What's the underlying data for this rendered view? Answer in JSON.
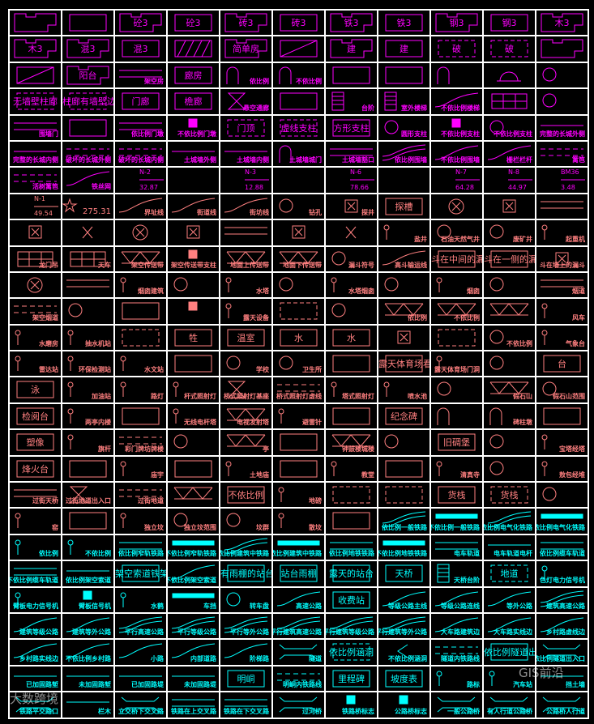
{
  "palette": {
    "magenta": "#ff00ff",
    "pink": "#ff8080",
    "cyan": "#00ffff",
    "grid": "#ffffff"
  },
  "watermarks": {
    "left": "大数跨境",
    "right": "GIS前沿"
  },
  "rows": [
    {
      "color": "magenta",
      "cells": [
        [
          "",
          "bldg"
        ],
        [
          "",
          "rect"
        ],
        [
          "砼3",
          "bldg"
        ],
        [
          "砼3",
          "rect"
        ],
        [
          "砖3",
          "bldg"
        ],
        [
          "砖3",
          "rect"
        ],
        [
          "铁3",
          "bldg"
        ],
        [
          "铁3",
          "rect"
        ],
        [
          "钢3",
          "bldg"
        ],
        [
          "钢3",
          "rect"
        ],
        [
          "木3",
          "bldg"
        ]
      ]
    },
    {
      "color": "magenta",
      "cells": [
        [
          "木3",
          "bldg"
        ],
        [
          "混3",
          "bldg"
        ],
        [
          "混3",
          "rect"
        ],
        [
          "",
          "hatch"
        ],
        [
          "简单房",
          "bldg"
        ],
        [
          "",
          "diag"
        ],
        [
          "建",
          "bldg"
        ],
        [
          "建",
          "rect"
        ],
        [
          "破",
          "dash"
        ],
        [
          "破",
          "dash"
        ],
        [
          "",
          "bldg"
        ]
      ]
    },
    {
      "color": "magenta",
      "cells": [
        [
          "",
          "diag"
        ],
        [
          "阳台",
          "bldg"
        ],
        [
          "架空房",
          "line2"
        ],
        [
          "廊房",
          "rect"
        ],
        [
          "依比例",
          "arch"
        ],
        [
          "不依比例",
          "arch"
        ],
        [
          "",
          "rect"
        ],
        [
          "",
          "rect"
        ],
        [
          "",
          "arch"
        ],
        [
          "",
          "dome"
        ],
        [
          "",
          "circ"
        ]
      ]
    },
    {
      "color": "magenta",
      "cells": [
        [
          "无墙壁柱廊",
          "dash"
        ],
        [
          "柱廊有墙壁边",
          "dash"
        ],
        [
          "门廊",
          "rect"
        ],
        [
          "檐廊",
          "rect"
        ],
        [
          "悬空通廊",
          "xbox"
        ],
        [
          "",
          "rect"
        ],
        [
          "台阶",
          "stairs"
        ],
        [
          "室外楼梯",
          "stairs"
        ],
        [
          "不依比例楼梯",
          "curve"
        ],
        [
          "",
          "grid"
        ],
        [
          "",
          "circ"
        ]
      ]
    },
    {
      "color": "magenta",
      "cells": [
        [
          "围墙门",
          "line2"
        ],
        [
          "",
          "rect"
        ],
        [
          "依比例门墩",
          "line2"
        ],
        [
          "不依比例门墩",
          "fill"
        ],
        [
          "门顶",
          "dash"
        ],
        [
          "虚线支柱",
          "dash"
        ],
        [
          "方形支柱",
          "rect"
        ],
        [
          "圆形支柱",
          "circ"
        ],
        [
          "不依比例支柱",
          "fill"
        ],
        [
          "不依比例支柱",
          "circ"
        ],
        [
          "完整的长城外侧",
          "line"
        ]
      ]
    },
    {
      "color": "magenta",
      "cells": [
        [
          "完整的长城内侧",
          "line"
        ],
        [
          "破坏的长城外侧",
          "dline"
        ],
        [
          "破坏的长城内侧",
          "dline"
        ],
        [
          "土城墙外侧",
          "line"
        ],
        [
          "土城墙内侧",
          "line"
        ],
        [
          "土城墙城门",
          "arch"
        ],
        [
          "土城墙豁口",
          "line2"
        ],
        [
          "依比例围墙",
          "curve2"
        ],
        [
          "不依比例围墙",
          "curve"
        ],
        [
          "栅栏栏杆",
          "curve"
        ],
        [
          "篱笆",
          "dline"
        ]
      ]
    },
    {
      "color": "magenta",
      "cells": [
        [
          "活树篱笆",
          "dline"
        ],
        [
          "铁丝网",
          "curve"
        ],
        [
          "N-2",
          "frac",
          "32.87"
        ],
        [
          "",
          "none"
        ],
        [
          "N-3",
          "frac",
          "12.88"
        ],
        [
          "",
          "none"
        ],
        [
          "N-6",
          "frac",
          "78.66"
        ],
        [
          "",
          "none"
        ],
        [
          "N-7",
          "frac",
          "64.28"
        ],
        [
          "N-8",
          "frac",
          "44.97"
        ],
        [
          "BM36",
          "frac",
          "3.48"
        ]
      ]
    },
    {
      "color": "pink",
      "cells": [
        [
          "N-1",
          "frac",
          "49.54"
        ],
        [
          "275.31",
          "star"
        ],
        [
          "界址线",
          "curve"
        ],
        [
          "街道线",
          "curve"
        ],
        [
          "街坊线",
          "curve"
        ],
        [
          "钻孔",
          "circ"
        ],
        [
          "探井",
          "sqx"
        ],
        [
          "探槽",
          "rect"
        ],
        [
          "",
          "circx"
        ],
        [
          "",
          "sqx"
        ],
        [
          "",
          "line2"
        ]
      ]
    },
    {
      "color": "pink",
      "cells": [
        [
          "",
          "sqx"
        ],
        [
          "",
          "x"
        ],
        [
          "",
          "circx"
        ],
        [
          "",
          "sqx"
        ],
        [
          "",
          "line2"
        ],
        [
          "",
          "sqx"
        ],
        [
          "",
          "x"
        ],
        [
          "盐井",
          "pin"
        ],
        [
          "石油天然气井",
          "circ"
        ],
        [
          "废矿井",
          "circ"
        ],
        [
          "起重机",
          "pin"
        ]
      ]
    },
    {
      "color": "pink",
      "cells": [
        [
          "龙门吊",
          "grid"
        ],
        [
          "天车",
          "grid"
        ],
        [
          "架空传送带",
          "tri"
        ],
        [
          "架空传送带支柱",
          "fill"
        ],
        [
          "地面上传送带",
          "tri"
        ],
        [
          "地面下传送带",
          "tri"
        ],
        [
          "漏斗符号",
          "circ"
        ],
        [
          "高斗输运线",
          "curve"
        ],
        [
          "斗在中间的漏斗",
          "rect"
        ],
        [
          "斗在一侧的漏斗",
          "rect"
        ],
        [
          "斗在墙上的漏斗",
          "sqx"
        ]
      ]
    },
    {
      "color": "pink",
      "cells": [
        [
          "",
          "circx"
        ],
        [
          "",
          "line2"
        ],
        [
          "烟囱建筑",
          "pin"
        ],
        [
          "",
          "circ"
        ],
        [
          "水塔",
          "pin"
        ],
        [
          "",
          "circ"
        ],
        [
          "水塔烟囱",
          "pin"
        ],
        [
          "",
          "circ"
        ],
        [
          "烟囱",
          "pin"
        ],
        [
          "",
          "circ"
        ],
        [
          "烟道",
          "line2"
        ]
      ]
    },
    {
      "color": "pink",
      "cells": [
        [
          "架空烟道",
          "dline"
        ],
        [
          "",
          "circ"
        ],
        [
          "",
          "rect"
        ],
        [
          "",
          "fill"
        ],
        [
          "露天设备",
          "pin"
        ],
        [
          "",
          "dash"
        ],
        [
          "",
          "circ"
        ],
        [
          "依比例",
          "tri"
        ],
        [
          "不依比例",
          "tri"
        ],
        [
          "",
          "tri"
        ],
        [
          "风车",
          "pin"
        ]
      ]
    },
    {
      "color": "pink",
      "cells": [
        [
          "水磨房",
          "pin"
        ],
        [
          "抽水机站",
          "pin"
        ],
        [
          "",
          "dash"
        ],
        [
          "牲",
          "rect"
        ],
        [
          "温室",
          "rect"
        ],
        [
          "水",
          "rect"
        ],
        [
          "水",
          "rect"
        ],
        [
          "",
          "sqx"
        ],
        [
          "",
          "dash"
        ],
        [
          "不依比例",
          "circ"
        ],
        [
          "气象台",
          "pin"
        ]
      ]
    },
    {
      "color": "pink",
      "cells": [
        [
          "雷达站",
          "pin"
        ],
        [
          "环保检测站",
          "pin"
        ],
        [
          "水文站",
          "pin"
        ],
        [
          "",
          "rect"
        ],
        [
          "学校",
          "circ"
        ],
        [
          "卫生所",
          "circ"
        ],
        [
          "",
          "rect"
        ],
        [
          "露天体育场看台",
          "rect"
        ],
        [
          "露天体育场门洞",
          "pin"
        ],
        [
          "",
          "circ"
        ],
        [
          "台",
          "rect"
        ]
      ]
    },
    {
      "color": "pink",
      "cells": [
        [
          "泳",
          "rect"
        ],
        [
          "加油站",
          "pin"
        ],
        [
          "路灯",
          "pin"
        ],
        [
          "杆式照射灯",
          "pin"
        ],
        [
          "桥式照射灯基座",
          "xbox"
        ],
        [
          "桥式照射灯虚线",
          "dline"
        ],
        [
          "塔式照射灯",
          "pin"
        ],
        [
          "喷水池",
          "pin"
        ],
        [
          "",
          "circ"
        ],
        [
          "假石山",
          "tri"
        ],
        [
          "假石山范围",
          "circ"
        ]
      ]
    },
    {
      "color": "pink",
      "cells": [
        [
          "检阅台",
          "rect"
        ],
        [
          "两亭内楼",
          "pin"
        ],
        [
          "",
          "rect"
        ],
        [
          "无线电杆塔",
          "pin"
        ],
        [
          "电视发射塔",
          "tri"
        ],
        [
          "避雷针",
          "pin"
        ],
        [
          "",
          "rect"
        ],
        [
          "纪念碑",
          "rect"
        ],
        [
          "",
          "arch"
        ],
        [
          "碑柱墩",
          "arch"
        ],
        [
          "",
          "rect"
        ]
      ]
    },
    {
      "color": "pink",
      "cells": [
        [
          "塑像",
          "rect"
        ],
        [
          "旗杆",
          "pin"
        ],
        [
          "彩门牌坊牌楼",
          "dline"
        ],
        [
          "",
          "circ"
        ],
        [
          "亭",
          "tri"
        ],
        [
          "",
          "rect"
        ],
        [
          "钟鼓楼城楼",
          "tri"
        ],
        [
          "",
          "circ"
        ],
        [
          "旧碉堡",
          "rect"
        ],
        [
          "",
          "circ"
        ],
        [
          "宝塔经塔",
          "pin"
        ]
      ]
    },
    {
      "color": "pink",
      "cells": [
        [
          "烽火台",
          "rect"
        ],
        [
          "",
          "rect"
        ],
        [
          "庙宇",
          "pin"
        ],
        [
          "",
          "rect"
        ],
        [
          "土地庙",
          "pin"
        ],
        [
          "",
          "rect"
        ],
        [
          "教堂",
          "pin"
        ],
        [
          "",
          "rect"
        ],
        [
          "清真寺",
          "pin"
        ],
        [
          "",
          "circ"
        ],
        [
          "敖包经堆",
          "pin"
        ]
      ]
    },
    {
      "color": "pink",
      "cells": [
        [
          "过街天桥",
          "line2"
        ],
        [
          "过街地道出入口",
          "xbox"
        ],
        [
          "过街地道",
          "dline"
        ],
        [
          "",
          "tri"
        ],
        [
          "不依比例",
          "rect"
        ],
        [
          "地磅",
          "pin"
        ],
        [
          "",
          "dash"
        ],
        [
          "",
          "dash"
        ],
        [
          "货栈",
          "rect"
        ],
        [
          "货栈",
          "dash"
        ],
        [
          "",
          "circ"
        ]
      ]
    },
    {
      "color": "pink",
      "cells": [
        [
          "窑",
          "pin"
        ],
        [
          "",
          "rect"
        ],
        [
          "独立坟",
          "pin"
        ],
        [
          "独立坟范围",
          "circ"
        ],
        [
          "坟群",
          "circ"
        ],
        [
          "散坟",
          "pin"
        ],
        [
          "",
          "rect"
        ],
        [
          "依比例一般铁路",
          "curve2",
          "",
          "cyan"
        ],
        [
          "不依比例一般铁路",
          "bar",
          "",
          "cyan"
        ],
        [
          "依比例电气化铁路",
          "curve2",
          "",
          "cyan"
        ],
        [
          "不依比例电气化铁路",
          "bar",
          "",
          "cyan"
        ]
      ]
    },
    {
      "color": "cyan",
      "cells": [
        [
          "依比例",
          "pin"
        ],
        [
          "不依比例",
          "pin"
        ],
        [
          "依比例窄轨铁路",
          "line2"
        ],
        [
          "不依比例窄轨铁路",
          "bar"
        ],
        [
          "依比例建筑中铁路",
          "curve2"
        ],
        [
          "不依比例建筑中铁路",
          "bar"
        ],
        [
          "依比例地铁铁路",
          "line2"
        ],
        [
          "不依比例地铁铁路",
          "bar"
        ],
        [
          "电车轨道",
          "line2"
        ],
        [
          "电车轨道电杆",
          "line"
        ],
        [
          "依比例缆车轨道",
          "line2"
        ]
      ]
    },
    {
      "color": "cyan",
      "cells": [
        [
          "不依比例缆车轨道",
          "line2"
        ],
        [
          "依比例架空索道",
          "line"
        ],
        [
          "架空索道铁架",
          "rect"
        ],
        [
          "不依比例架空索道",
          "curve"
        ],
        [
          "有雨棚的站台",
          "rect"
        ],
        [
          "站台雨棚",
          "rect"
        ],
        [
          "露天的站台",
          "rect"
        ],
        [
          "天桥",
          "rect"
        ],
        [
          "天桥台阶",
          "stairs"
        ],
        [
          "地道",
          "dash"
        ],
        [
          "色灯电力信号机",
          "pin"
        ]
      ]
    },
    {
      "color": "cyan",
      "cells": [
        [
          "臂板电力信号机",
          "pin"
        ],
        [
          "臂板信号机",
          "fill"
        ],
        [
          "水鹤",
          "pin"
        ],
        [
          "车挡",
          "bar"
        ],
        [
          "转车盘",
          "circ"
        ],
        [
          "高速公路",
          "curve"
        ],
        [
          "收费站",
          "rect"
        ],
        [
          "等级公路主线",
          "curve"
        ],
        [
          "等级公路连线",
          "curve"
        ],
        [
          "等外公路",
          "curve"
        ],
        [
          "建筑高速公路",
          "curve2"
        ]
      ]
    },
    {
      "color": "cyan",
      "cells": [
        [
          "建筑等级公路",
          "curve"
        ],
        [
          "建筑等外公路",
          "curve"
        ],
        [
          "平行高速公路",
          "curve2"
        ],
        [
          "平行等级公路",
          "curve2"
        ],
        [
          "平行等外公路",
          "curve2"
        ],
        [
          "平行建筑高速公路",
          "curve2"
        ],
        [
          "平行建筑等级公路",
          "curve2"
        ],
        [
          "平行建筑等外公路",
          "curve2"
        ],
        [
          "大车路建筑边",
          "curve"
        ],
        [
          "大车路实线边",
          "curve"
        ],
        [
          "乡村路虚线边",
          "curve"
        ]
      ]
    },
    {
      "color": "cyan",
      "cells": [
        [
          "乡村路实线边",
          "curve"
        ],
        [
          "不依比例乡村路",
          "curve"
        ],
        [
          "小路",
          "curve"
        ],
        [
          "内部道路",
          "curve"
        ],
        [
          "阶梯路",
          "curve"
        ],
        [
          "隧道",
          "trap"
        ],
        [
          "依比例涵洞",
          "dash"
        ],
        [
          "不依比例涵洞",
          "chev"
        ],
        [
          "隧道内铁路线",
          "dline"
        ],
        [
          "依比例隧道出入口",
          "rect"
        ],
        [
          "不依比例隧道出入口",
          "trap"
        ]
      ]
    },
    {
      "color": "cyan",
      "cells": [
        [
          "已加固路堑",
          "line"
        ],
        [
          "未加固路堑",
          "line"
        ],
        [
          "已加固路堤",
          "line"
        ],
        [
          "未加固路堤",
          "line"
        ],
        [
          "明峒",
          "rect"
        ],
        [
          "明峒内铁路线",
          "dline"
        ],
        [
          "里程碑",
          "rect"
        ],
        [
          "坡度表",
          "rect"
        ],
        [
          "路标",
          "pin"
        ],
        [
          "汽车站",
          "pin"
        ],
        [
          "挡土墙",
          "line"
        ]
      ]
    },
    {
      "color": "cyan",
      "cells": [
        [
          "铁路平交路口",
          "trap"
        ],
        [
          "栏木",
          "line"
        ],
        [
          "立交桥下交叉路",
          "trap"
        ],
        [
          "铁路在上交叉路",
          "line2"
        ],
        [
          "铁路在下交叉路",
          "line2"
        ],
        [
          "过河桥",
          "trap"
        ],
        [
          "铁路桥标志",
          "fill"
        ],
        [
          "公路桥标志",
          "fill"
        ],
        [
          "一般公路桥",
          "trap"
        ],
        [
          "有人行道公路桥",
          "trap"
        ],
        [
          "公路桥人行道",
          "trap"
        ]
      ]
    }
  ]
}
